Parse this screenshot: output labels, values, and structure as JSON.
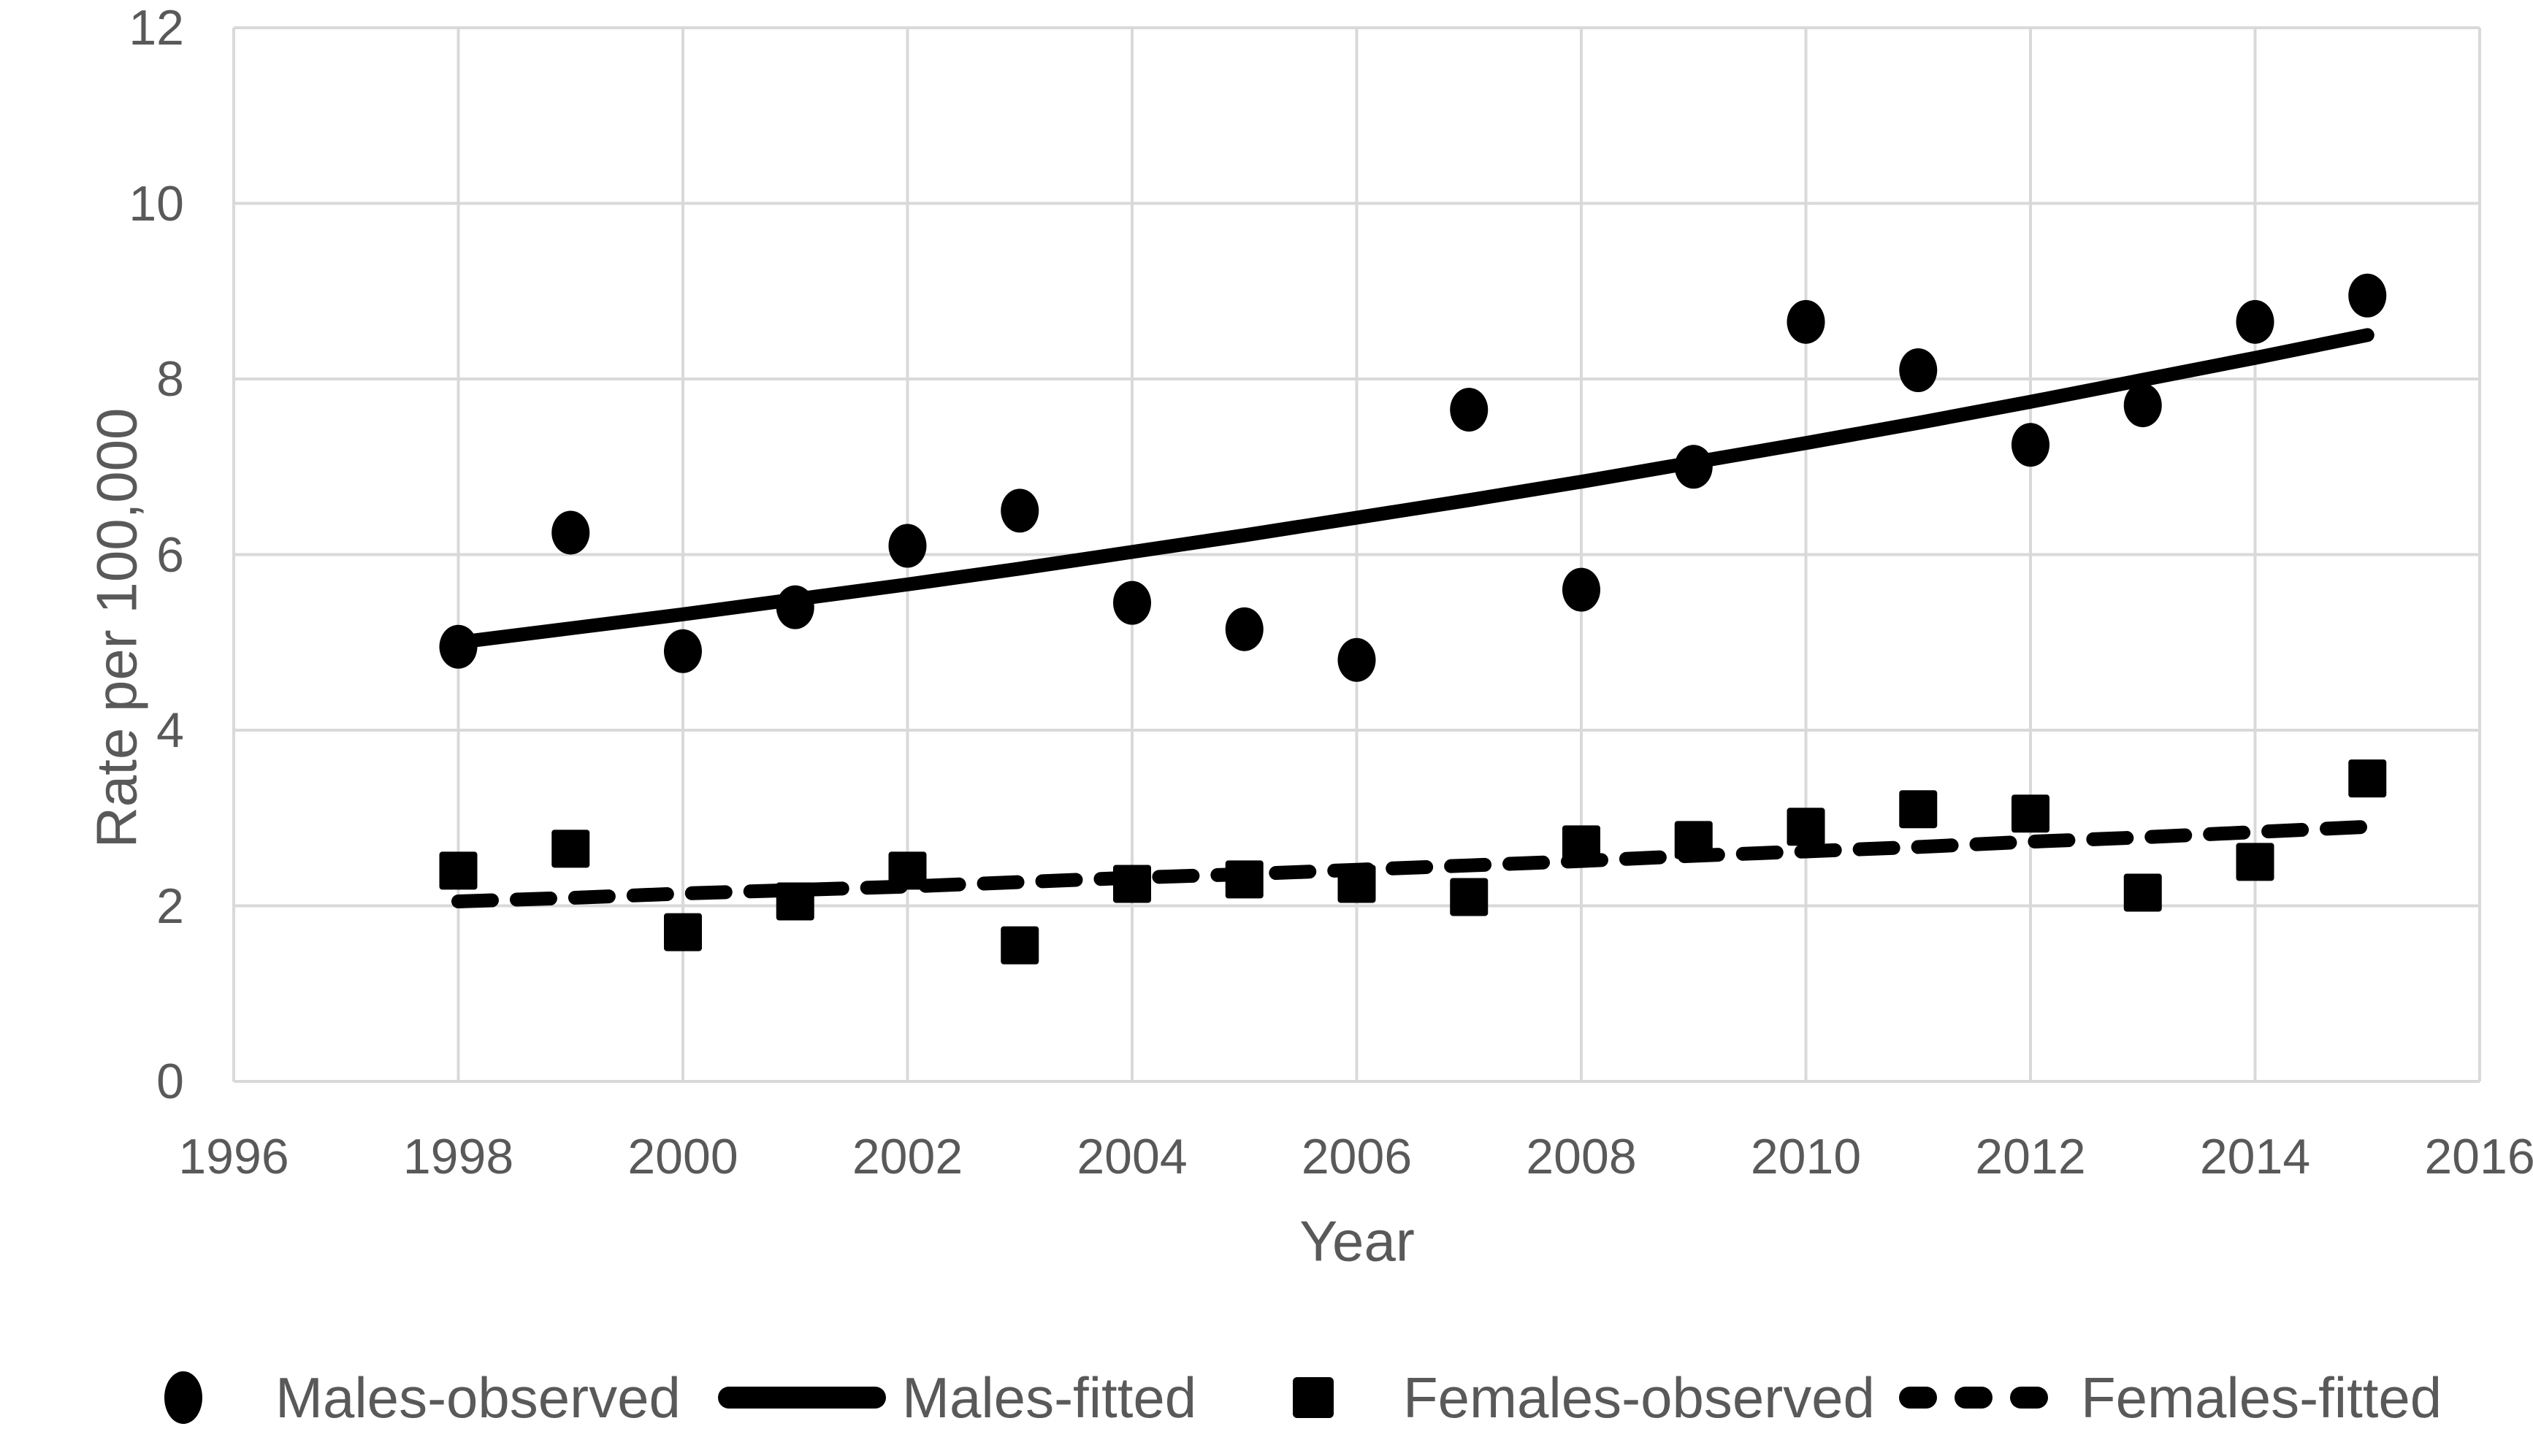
{
  "chart_data": {
    "type": "scatter",
    "title": "",
    "xlabel": "Year",
    "ylabel": "Rate per 100,000",
    "xlim": [
      1996,
      2016
    ],
    "ylim": [
      0,
      12
    ],
    "x_ticks": [
      1996,
      1998,
      2000,
      2002,
      2004,
      2006,
      2008,
      2010,
      2012,
      2014,
      2016
    ],
    "y_ticks": [
      0,
      2,
      4,
      6,
      8,
      10,
      12
    ],
    "grid": true,
    "legend_position": "bottom",
    "x": [
      1998,
      1999,
      2000,
      2001,
      2002,
      2003,
      2004,
      2005,
      2006,
      2007,
      2008,
      2009,
      2010,
      2011,
      2012,
      2013,
      2014,
      2015
    ],
    "series": [
      {
        "name": "Males-observed",
        "type": "scatter",
        "marker": "circle",
        "color": "#000000",
        "values": [
          4.95,
          6.25,
          4.9,
          5.4,
          6.1,
          6.5,
          5.45,
          5.15,
          4.8,
          7.65,
          5.6,
          7.0,
          8.65,
          8.1,
          7.25,
          7.7,
          8.65,
          8.95
        ]
      },
      {
        "name": "Males-fitted",
        "type": "line",
        "line_style": "solid",
        "color": "#000000",
        "values": [
          5.0,
          5.16,
          5.32,
          5.49,
          5.66,
          5.84,
          6.03,
          6.22,
          6.42,
          6.62,
          6.83,
          7.05,
          7.27,
          7.5,
          7.74,
          7.99,
          8.24,
          8.5
        ]
      },
      {
        "name": "Females-observed",
        "type": "scatter",
        "marker": "square",
        "color": "#000000",
        "values": [
          2.4,
          2.65,
          1.7,
          2.05,
          2.4,
          1.55,
          2.25,
          2.3,
          2.25,
          2.1,
          2.7,
          2.75,
          2.9,
          3.1,
          3.05,
          2.15,
          2.5,
          3.45
        ]
      },
      {
        "name": "Females-fitted",
        "type": "line",
        "line_style": "dashed",
        "color": "#000000",
        "values": [
          2.05,
          2.09,
          2.14,
          2.18,
          2.22,
          2.27,
          2.32,
          2.36,
          2.41,
          2.46,
          2.51,
          2.57,
          2.62,
          2.67,
          2.73,
          2.78,
          2.84,
          2.9
        ]
      }
    ]
  },
  "styles": {
    "grid_color": "#D9D9D9",
    "text_color": "#595959",
    "marker_color": "#000000",
    "background": "#FFFFFF"
  }
}
